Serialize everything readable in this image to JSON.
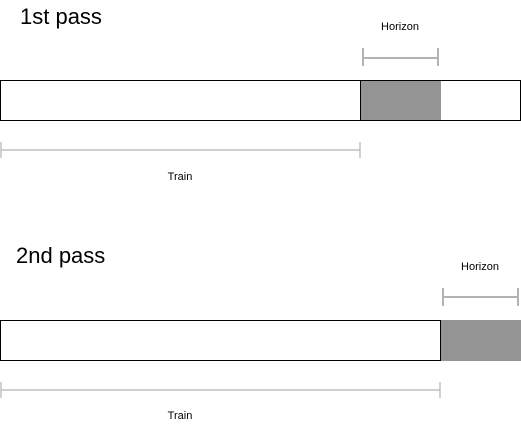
{
  "passes": [
    {
      "title": "1st pass",
      "horizon_label": "Horizon",
      "train_label": "Train"
    },
    {
      "title": "2nd pass",
      "horizon_label": "Horizon",
      "train_label": "Train"
    }
  ],
  "colors": {
    "bar_fill": "#ffffff",
    "bar_stroke": "#000000",
    "horizon_fill": "#949494",
    "bracket": "#b3b3b3"
  }
}
